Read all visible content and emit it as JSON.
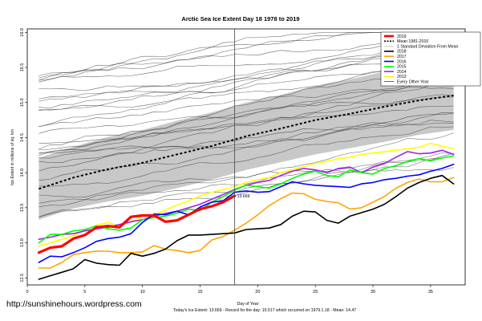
{
  "chart_data": {
    "type": "line",
    "title": "Arctic Sea Ice Extent Day 18 1978 to 2019",
    "xlabel": "Day of Year",
    "ylabel": "Ice Extent in millions of sq. km",
    "xlim": [
      0,
      38
    ],
    "ylim": [
      12.4,
      16.05
    ],
    "x_ticks": [
      0,
      5,
      10,
      15,
      20,
      25,
      30,
      35
    ],
    "y_ticks": [
      12.5,
      13.0,
      13.5,
      14.0,
      14.5,
      15.0,
      15.5,
      16.0
    ],
    "current_day": 18,
    "annotation": "13.669",
    "footer": "Today's Ice Extent: 13.669  -  Record for the day: 15.517 which occurred on 1979.1.18  -  Mean: 14.47",
    "watermark": "http://sunshinehours.wordpress.com",
    "legend_position": "top-right",
    "legend": [
      {
        "label": "2019",
        "color": "#ff0000"
      },
      {
        "label": "Mean 1981-2010",
        "color": "#000000"
      },
      {
        "label": "1 Standard Deviation From Mean",
        "color": "#bebebe"
      },
      {
        "label": "2018",
        "color": "#000000"
      },
      {
        "label": "2017",
        "color": "#ffa500"
      },
      {
        "label": "2016",
        "color": "#0000ff"
      },
      {
        "label": "2015",
        "color": "#00ff00"
      },
      {
        "label": "2014",
        "color": "#a020f0"
      },
      {
        "label": "2013",
        "color": "#ffff00"
      },
      {
        "label": "Every Other Year",
        "color": "#000000"
      }
    ],
    "mean": {
      "x": [
        1,
        4,
        7,
        10,
        13,
        16,
        19,
        22,
        25,
        28,
        31,
        34,
        37
      ],
      "y": [
        13.77,
        13.93,
        14.05,
        14.14,
        14.26,
        14.38,
        14.52,
        14.63,
        14.75,
        14.84,
        14.94,
        15.03,
        15.1
      ]
    },
    "std_band": {
      "x": [
        1,
        4,
        7,
        10,
        13,
        16,
        19,
        22,
        25,
        28,
        31,
        34,
        37
      ],
      "upper": [
        14.21,
        14.37,
        14.51,
        14.61,
        14.74,
        14.86,
        15.0,
        15.11,
        15.24,
        15.33,
        15.44,
        15.52,
        15.59
      ],
      "lower": [
        13.33,
        13.49,
        13.59,
        13.67,
        13.78,
        13.9,
        14.04,
        14.15,
        14.26,
        14.35,
        14.44,
        14.54,
        14.61
      ]
    },
    "series": [
      {
        "name": "2019",
        "color": "#ff0000",
        "width": 3.2,
        "x": [
          1,
          2,
          3,
          4,
          5,
          6,
          7,
          8,
          9,
          10,
          11,
          12,
          13,
          14,
          15,
          16,
          17,
          18
        ],
        "y": [
          12.86,
          12.93,
          12.95,
          13.06,
          13.11,
          13.22,
          13.24,
          13.22,
          13.37,
          13.39,
          13.39,
          13.3,
          13.32,
          13.4,
          13.48,
          13.52,
          13.58,
          13.67
        ]
      },
      {
        "name": "2018",
        "color": "#000000",
        "width": 1.6,
        "x": [
          1,
          2,
          3,
          4,
          5,
          6,
          7,
          8,
          9,
          10,
          11,
          12,
          13,
          14,
          15,
          16,
          17,
          18,
          19,
          20,
          21,
          22,
          23,
          24,
          25,
          26,
          27,
          28,
          29,
          30,
          31,
          32,
          33,
          34,
          35,
          36,
          37
        ],
        "y": [
          12.48,
          12.53,
          12.58,
          12.63,
          12.76,
          12.71,
          12.69,
          12.68,
          12.85,
          12.81,
          12.85,
          12.91,
          13.03,
          13.11,
          13.11,
          13.12,
          13.13,
          13.14,
          13.19,
          13.2,
          13.21,
          13.26,
          13.38,
          13.45,
          13.44,
          13.32,
          13.28,
          13.38,
          13.43,
          13.48,
          13.55,
          13.66,
          13.78,
          13.86,
          13.92,
          13.96,
          13.84
        ]
      },
      {
        "name": "2017",
        "color": "#ffa500",
        "width": 1.6,
        "x": [
          1,
          2,
          3,
          4,
          5,
          6,
          7,
          8,
          9,
          10,
          11,
          12,
          13,
          14,
          15,
          16,
          17,
          18,
          19,
          20,
          21,
          22,
          23,
          24,
          25,
          26,
          27,
          28,
          29,
          30,
          31,
          32,
          33,
          34,
          35,
          36,
          37
        ],
        "y": [
          12.64,
          12.64,
          12.72,
          12.83,
          12.86,
          12.88,
          12.88,
          12.86,
          12.86,
          12.87,
          12.96,
          12.91,
          12.89,
          12.86,
          12.89,
          13.04,
          13.09,
          13.18,
          13.28,
          13.4,
          13.53,
          13.63,
          13.71,
          13.7,
          13.62,
          13.59,
          13.57,
          13.48,
          13.5,
          13.58,
          13.66,
          13.78,
          13.86,
          13.91,
          13.87,
          13.87,
          13.93
        ]
      },
      {
        "name": "2016",
        "color": "#0000ff",
        "width": 1.6,
        "x": [
          1,
          2,
          3,
          4,
          5,
          6,
          7,
          8,
          9,
          10,
          11,
          12,
          13,
          14,
          15,
          16,
          17,
          18,
          19,
          20,
          21,
          22,
          23,
          24,
          25,
          26,
          27,
          28,
          29,
          30,
          31,
          32,
          33,
          34,
          35,
          36,
          37
        ],
        "y": [
          12.72,
          12.81,
          12.8,
          12.86,
          12.93,
          13.02,
          13.06,
          13.08,
          13.13,
          13.29,
          13.41,
          13.4,
          13.45,
          13.4,
          13.51,
          13.58,
          13.6,
          13.72,
          13.74,
          13.72,
          13.73,
          13.8,
          13.87,
          13.84,
          13.82,
          13.81,
          13.8,
          13.79,
          13.84,
          13.86,
          13.9,
          13.92,
          13.95,
          13.97,
          14.02,
          14.06,
          14.12
        ]
      },
      {
        "name": "2015",
        "color": "#00ff00",
        "width": 1.6,
        "x": [
          1,
          2,
          3,
          4,
          5,
          6,
          7,
          8,
          9,
          10,
          11,
          12,
          13,
          14,
          15,
          16,
          17,
          18,
          19,
          20,
          21,
          22,
          23,
          24,
          25,
          26,
          27,
          28,
          29,
          30,
          31,
          32,
          33,
          34,
          35,
          36,
          37
        ],
        "y": [
          13.0,
          13.12,
          13.12,
          13.17,
          13.19,
          13.24,
          13.2,
          13.18,
          13.21,
          13.33,
          13.36,
          13.38,
          13.42,
          13.48,
          13.46,
          13.58,
          13.66,
          13.75,
          13.82,
          13.8,
          13.78,
          13.84,
          13.92,
          13.98,
          14.02,
          13.96,
          13.94,
          14.04,
          14.0,
          13.98,
          14.06,
          14.1,
          14.16,
          14.2,
          14.17,
          14.21,
          14.24
        ]
      },
      {
        "name": "2014",
        "color": "#a020f0",
        "width": 1.6,
        "x": [
          1,
          2,
          3,
          4,
          5,
          6,
          7,
          8,
          9,
          10,
          11,
          12,
          13,
          14,
          15,
          16,
          17,
          18,
          19,
          20,
          21,
          22,
          23,
          24,
          25,
          26,
          27,
          28,
          29,
          30,
          31,
          32,
          33,
          34,
          35,
          36,
          37
        ],
        "y": [
          13.05,
          13.08,
          13.12,
          13.13,
          13.17,
          13.2,
          13.22,
          13.26,
          13.3,
          13.33,
          13.38,
          13.42,
          13.45,
          13.5,
          13.55,
          13.62,
          13.69,
          13.76,
          13.82,
          13.86,
          13.89,
          13.96,
          14.02,
          14.06,
          14.04,
          14.0,
          14.06,
          14.08,
          14.0,
          14.08,
          14.13,
          14.22,
          14.3,
          14.27,
          14.28,
          14.32,
          14.26
        ]
      },
      {
        "name": "2013",
        "color": "#ffff00",
        "width": 1.6,
        "x": [
          1,
          2,
          3,
          4,
          5,
          6,
          7,
          8,
          9,
          10,
          11,
          12,
          13,
          14,
          15,
          16,
          17,
          18,
          19,
          20,
          21,
          22,
          23,
          24,
          25,
          26,
          27,
          28,
          29,
          30,
          31,
          32,
          33,
          34,
          35,
          36,
          37
        ],
        "y": [
          12.95,
          13.0,
          13.05,
          13.1,
          13.18,
          13.25,
          13.29,
          13.24,
          13.3,
          13.38,
          13.39,
          13.47,
          13.54,
          13.6,
          13.67,
          13.72,
          13.76,
          13.8,
          13.86,
          13.9,
          13.93,
          14.0,
          14.04,
          14.09,
          14.13,
          14.16,
          14.2,
          14.22,
          14.26,
          14.28,
          14.3,
          14.32,
          14.34,
          14.36,
          14.42,
          14.38,
          14.34
        ]
      }
    ]
  }
}
